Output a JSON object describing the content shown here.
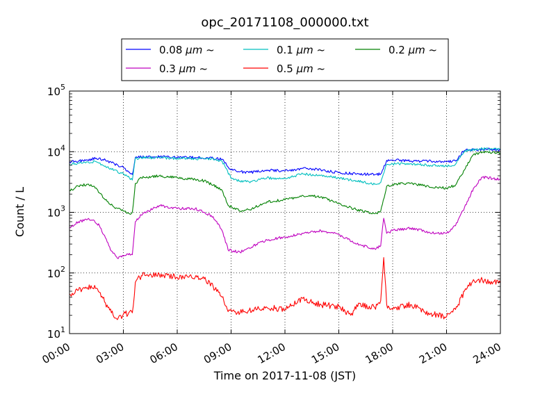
{
  "chart_data": {
    "type": "line",
    "title": "opc_20171108_000000.txt",
    "xlabel": "Time on 2017-11-08 (JST)",
    "ylabel": "Count / L",
    "xlim": [
      "00:00",
      "24:00"
    ],
    "ylim": [
      10,
      100000
    ],
    "y_scale": "log",
    "grid": true,
    "legend_position": "top-center",
    "x_ticks": [
      "00:00",
      "03:00",
      "06:00",
      "09:00",
      "12:00",
      "15:00",
      "18:00",
      "21:00",
      "24:00"
    ],
    "y_ticks": [
      {
        "value": 10,
        "base": "10",
        "exp": "1"
      },
      {
        "value": 100,
        "base": "10",
        "exp": "2"
      },
      {
        "value": 1000,
        "base": "10",
        "exp": "3"
      },
      {
        "value": 10000,
        "base": "10",
        "exp": "4"
      },
      {
        "value": 100000,
        "base": "10",
        "exp": "5"
      }
    ],
    "series": [
      {
        "name_prefix": "0.08 ",
        "name_unit": "μm",
        "name_suffix": " ~",
        "color": "#0000ff",
        "points": [
          [
            "00:00",
            6800
          ],
          [
            "00:30",
            7000
          ],
          [
            "01:00",
            7300
          ],
          [
            "01:30",
            7800
          ],
          [
            "02:00",
            7300
          ],
          [
            "02:30",
            6300
          ],
          [
            "03:00",
            5500
          ],
          [
            "03:20",
            4600
          ],
          [
            "03:30",
            4200
          ],
          [
            "03:40",
            8000
          ],
          [
            "04:00",
            8200
          ],
          [
            "05:00",
            8200
          ],
          [
            "06:00",
            8000
          ],
          [
            "07:00",
            8000
          ],
          [
            "08:00",
            7800
          ],
          [
            "08:30",
            7500
          ],
          [
            "09:00",
            5000
          ],
          [
            "09:30",
            4700
          ],
          [
            "10:00",
            4500
          ],
          [
            "11:00",
            5000
          ],
          [
            "12:00",
            4800
          ],
          [
            "13:00",
            5300
          ],
          [
            "14:00",
            5000
          ],
          [
            "15:00",
            4500
          ],
          [
            "16:00",
            4300
          ],
          [
            "17:00",
            4200
          ],
          [
            "17:20",
            4300
          ],
          [
            "17:40",
            7200
          ],
          [
            "18:00",
            7300
          ],
          [
            "19:00",
            7000
          ],
          [
            "20:00",
            7000
          ],
          [
            "21:00",
            6800
          ],
          [
            "21:30",
            7000
          ],
          [
            "22:00",
            10500
          ],
          [
            "23:00",
            11000
          ],
          [
            "24:00",
            10800
          ]
        ]
      },
      {
        "name_prefix": "0.1 ",
        "name_unit": "μm",
        "name_suffix": " ~",
        "color": "#00bfbf",
        "points": [
          [
            "00:00",
            6200
          ],
          [
            "00:30",
            6500
          ],
          [
            "01:00",
            6800
          ],
          [
            "01:30",
            6800
          ],
          [
            "02:00",
            5800
          ],
          [
            "02:30",
            5000
          ],
          [
            "03:00",
            4300
          ],
          [
            "03:20",
            3700
          ],
          [
            "03:30",
            3400
          ],
          [
            "03:40",
            7700
          ],
          [
            "04:00",
            7900
          ],
          [
            "05:00",
            8000
          ],
          [
            "06:00",
            7700
          ],
          [
            "07:00",
            7700
          ],
          [
            "08:00",
            7600
          ],
          [
            "08:30",
            7000
          ],
          [
            "09:00",
            3600
          ],
          [
            "09:30",
            3300
          ],
          [
            "10:00",
            3200
          ],
          [
            "11:00",
            3700
          ],
          [
            "12:00",
            3600
          ],
          [
            "13:00",
            4300
          ],
          [
            "14:00",
            4100
          ],
          [
            "15:00",
            3700
          ],
          [
            "16:00",
            3300
          ],
          [
            "17:00",
            2900
          ],
          [
            "17:20",
            3100
          ],
          [
            "17:40",
            6200
          ],
          [
            "18:00",
            6300
          ],
          [
            "19:00",
            6300
          ],
          [
            "20:00",
            6000
          ],
          [
            "21:00",
            5800
          ],
          [
            "21:30",
            6200
          ],
          [
            "22:00",
            10200
          ],
          [
            "23:00",
            11200
          ],
          [
            "24:00",
            11000
          ]
        ]
      },
      {
        "name_prefix": "0.2 ",
        "name_unit": "μm",
        "name_suffix": " ~",
        "color": "#008000",
        "points": [
          [
            "00:00",
            2300
          ],
          [
            "00:30",
            2700
          ],
          [
            "01:00",
            2900
          ],
          [
            "01:20",
            2700
          ],
          [
            "01:40",
            2100
          ],
          [
            "02:00",
            1600
          ],
          [
            "02:30",
            1200
          ],
          [
            "03:00",
            1050
          ],
          [
            "03:20",
            950
          ],
          [
            "03:30",
            1000
          ],
          [
            "03:40",
            3000
          ],
          [
            "04:00",
            3700
          ],
          [
            "05:00",
            4000
          ],
          [
            "06:00",
            3700
          ],
          [
            "07:00",
            3500
          ],
          [
            "07:30",
            3300
          ],
          [
            "08:00",
            2800
          ],
          [
            "08:30",
            2300
          ],
          [
            "08:50",
            1300
          ],
          [
            "09:30",
            1050
          ],
          [
            "10:00",
            1100
          ],
          [
            "11:00",
            1500
          ],
          [
            "12:00",
            1600
          ],
          [
            "13:00",
            1900
          ],
          [
            "14:00",
            1800
          ],
          [
            "15:00",
            1400
          ],
          [
            "16:00",
            1100
          ],
          [
            "17:00",
            950
          ],
          [
            "17:20",
            1050
          ],
          [
            "17:40",
            2700
          ],
          [
            "18:00",
            2900
          ],
          [
            "19:00",
            3000
          ],
          [
            "20:00",
            2700
          ],
          [
            "21:00",
            2500
          ],
          [
            "21:30",
            2800
          ],
          [
            "22:00",
            5000
          ],
          [
            "22:30",
            9000
          ],
          [
            "23:00",
            9800
          ],
          [
            "24:00",
            9500
          ]
        ]
      },
      {
        "name_prefix": "0.3 ",
        "name_unit": "μm",
        "name_suffix": " ~",
        "color": "#bf00bf",
        "points": [
          [
            "00:00",
            560
          ],
          [
            "00:30",
            700
          ],
          [
            "01:00",
            760
          ],
          [
            "01:20",
            750
          ],
          [
            "01:40",
            600
          ],
          [
            "02:00",
            380
          ],
          [
            "02:20",
            230
          ],
          [
            "02:40",
            175
          ],
          [
            "03:00",
            190
          ],
          [
            "03:20",
            210
          ],
          [
            "03:30",
            200
          ],
          [
            "03:40",
            700
          ],
          [
            "04:00",
            900
          ],
          [
            "05:00",
            1300
          ],
          [
            "06:00",
            1150
          ],
          [
            "07:00",
            1150
          ],
          [
            "07:30",
            1000
          ],
          [
            "08:00",
            850
          ],
          [
            "08:30",
            500
          ],
          [
            "08:50",
            240
          ],
          [
            "09:30",
            220
          ],
          [
            "10:00",
            260
          ],
          [
            "11:00",
            350
          ],
          [
            "12:00",
            390
          ],
          [
            "13:00",
            450
          ],
          [
            "14:00",
            500
          ],
          [
            "15:00",
            430
          ],
          [
            "16:00",
            300
          ],
          [
            "17:00",
            250
          ],
          [
            "17:20",
            280
          ],
          [
            "17:30",
            800
          ],
          [
            "17:40",
            450
          ],
          [
            "18:00",
            500
          ],
          [
            "19:00",
            550
          ],
          [
            "20:00",
            470
          ],
          [
            "21:00",
            450
          ],
          [
            "21:30",
            600
          ],
          [
            "22:00",
            1200
          ],
          [
            "22:30",
            2500
          ],
          [
            "23:00",
            3800
          ],
          [
            "24:00",
            3500
          ]
        ]
      },
      {
        "name_prefix": "0.5 ",
        "name_unit": "μm",
        "name_suffix": " ~",
        "color": "#ff0000",
        "points": [
          [
            "00:00",
            45
          ],
          [
            "00:30",
            52
          ],
          [
            "01:00",
            57
          ],
          [
            "01:30",
            56
          ],
          [
            "01:40",
            48
          ],
          [
            "02:00",
            32
          ],
          [
            "02:20",
            22
          ],
          [
            "02:40",
            17
          ],
          [
            "03:00",
            21
          ],
          [
            "03:30",
            22
          ],
          [
            "03:40",
            70
          ],
          [
            "04:00",
            90
          ],
          [
            "05:00",
            95
          ],
          [
            "06:00",
            85
          ],
          [
            "07:00",
            85
          ],
          [
            "07:30",
            80
          ],
          [
            "08:00",
            60
          ],
          [
            "08:30",
            40
          ],
          [
            "08:50",
            23
          ],
          [
            "09:30",
            22
          ],
          [
            "10:00",
            24
          ],
          [
            "11:00",
            27
          ],
          [
            "12:00",
            25
          ],
          [
            "13:00",
            38
          ],
          [
            "14:00",
            30
          ],
          [
            "15:00",
            28
          ],
          [
            "15:40",
            20
          ],
          [
            "16:00",
            30
          ],
          [
            "17:00",
            27
          ],
          [
            "17:20",
            35
          ],
          [
            "17:30",
            180
          ],
          [
            "17:40",
            30
          ],
          [
            "18:00",
            25
          ],
          [
            "19:00",
            30
          ],
          [
            "20:00",
            22
          ],
          [
            "21:00",
            19
          ],
          [
            "21:30",
            25
          ],
          [
            "22:00",
            50
          ],
          [
            "22:30",
            78
          ],
          [
            "23:00",
            75
          ],
          [
            "24:00",
            68
          ]
        ]
      }
    ]
  }
}
